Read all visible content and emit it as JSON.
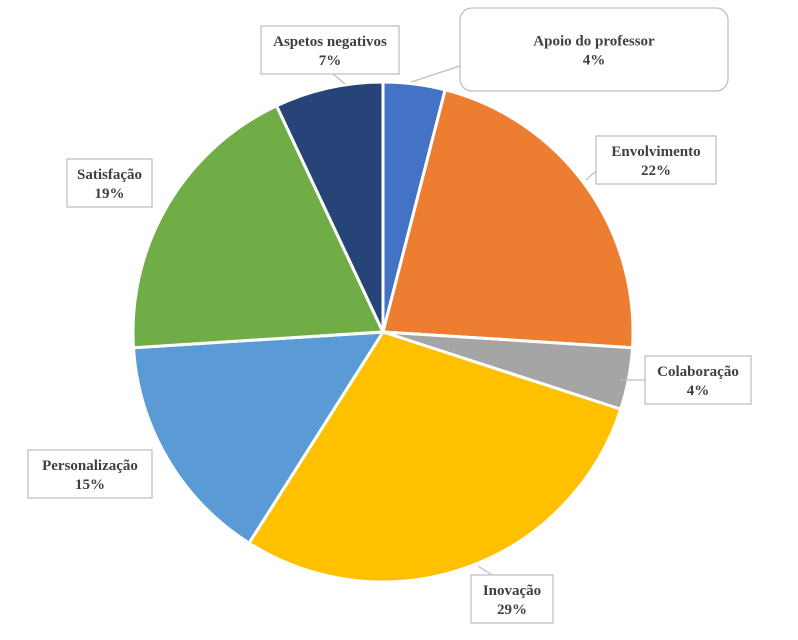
{
  "chart_data": {
    "type": "pie",
    "start_angle_deg": 0,
    "direction": "clockwise",
    "slices": [
      {
        "label": "Apoio do professor",
        "value": 4,
        "value_label": "4%",
        "color": "#4472C4"
      },
      {
        "label": "Envolvimento",
        "value": 22,
        "value_label": "22%",
        "color": "#ED7D31"
      },
      {
        "label": "Colaboração",
        "value": 4,
        "value_label": "4%",
        "color": "#A5A5A5"
      },
      {
        "label": "Inovação",
        "value": 29,
        "value_label": "29%",
        "color": "#FFC000"
      },
      {
        "label": "Personalização",
        "value": 15,
        "value_label": "15%",
        "color": "#5B9BD5"
      },
      {
        "label": "Satisfação",
        "value": 19,
        "value_label": "19%",
        "color": "#70AD47"
      },
      {
        "label": "Aspetos negativos",
        "value": 7,
        "value_label": "7%",
        "color": "#264478"
      }
    ]
  }
}
